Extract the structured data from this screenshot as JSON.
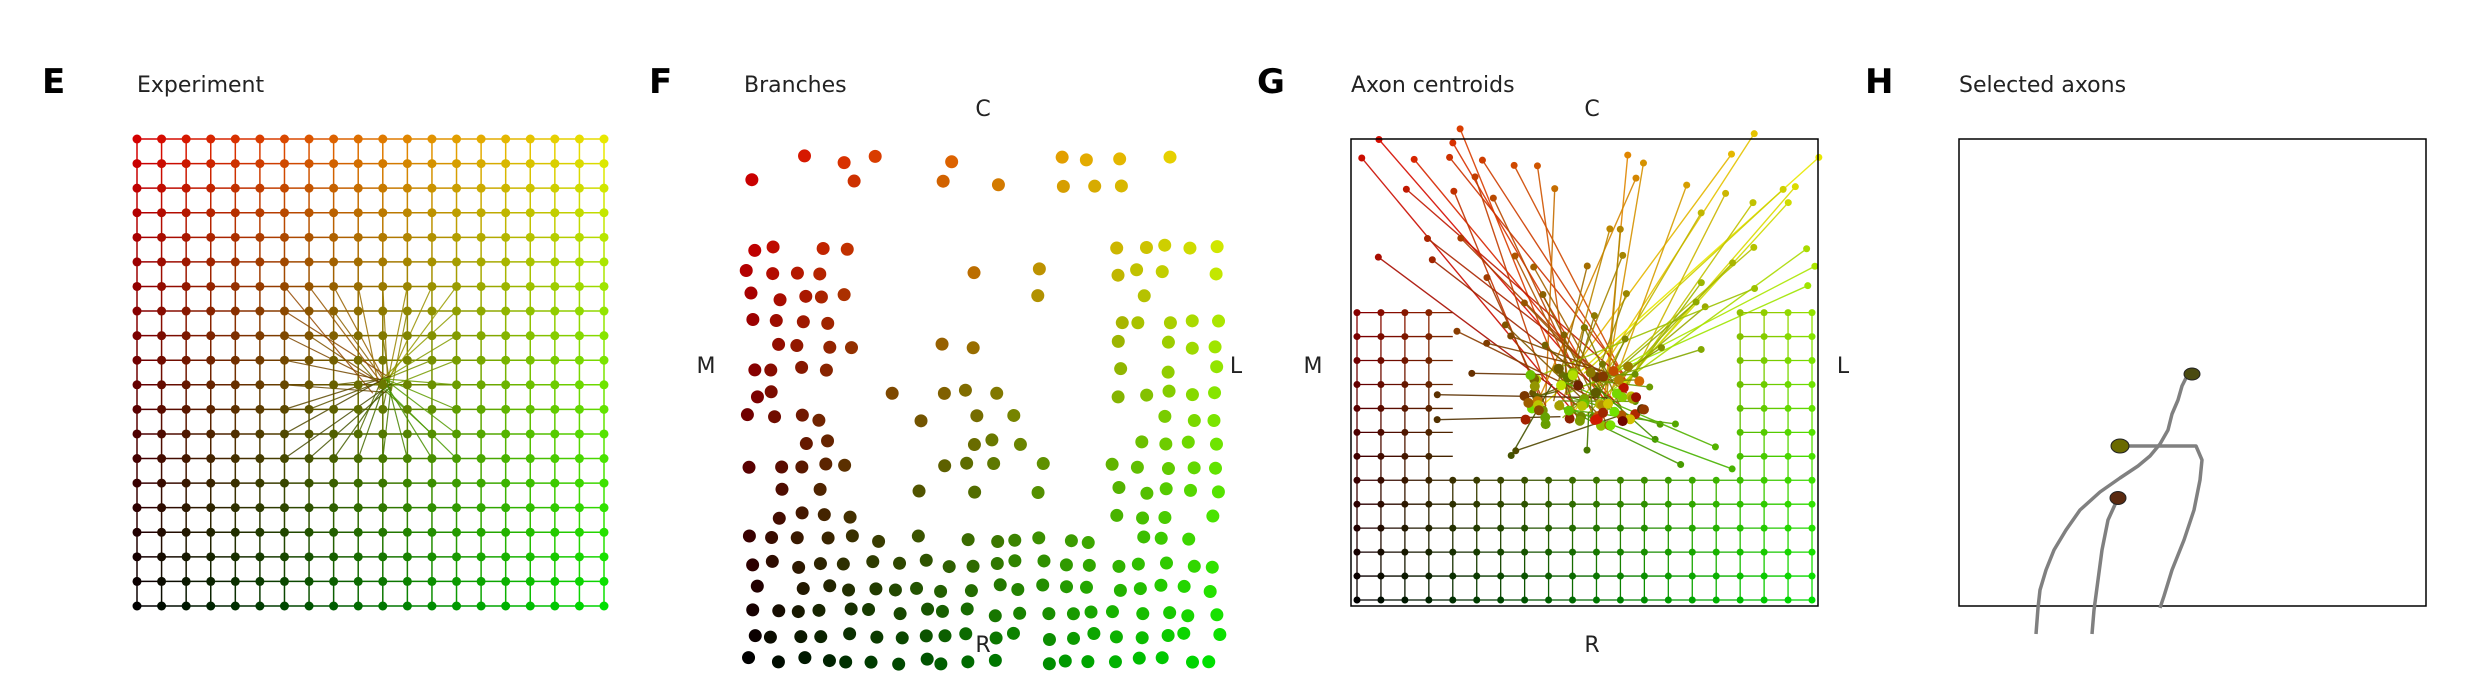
{
  "panels": [
    {
      "letter": "E",
      "title": "Experiment"
    },
    {
      "letter": "F",
      "title": "Branches"
    },
    {
      "letter": "G",
      "title": "Axon centroids"
    },
    {
      "letter": "H",
      "title": "Selected axons"
    }
  ],
  "directions": {
    "top": "C",
    "bottom": "R",
    "left": "M",
    "right": "L"
  },
  "grid": {
    "columns": 20,
    "rows": 20
  },
  "colors": {
    "corner_top_left": "#d40000",
    "corner_top_right": "#e8e800",
    "corner_bottom_left": "#000000",
    "corner_bottom_right": "#00e000",
    "trace": "#808080",
    "frame": "#000000"
  }
}
